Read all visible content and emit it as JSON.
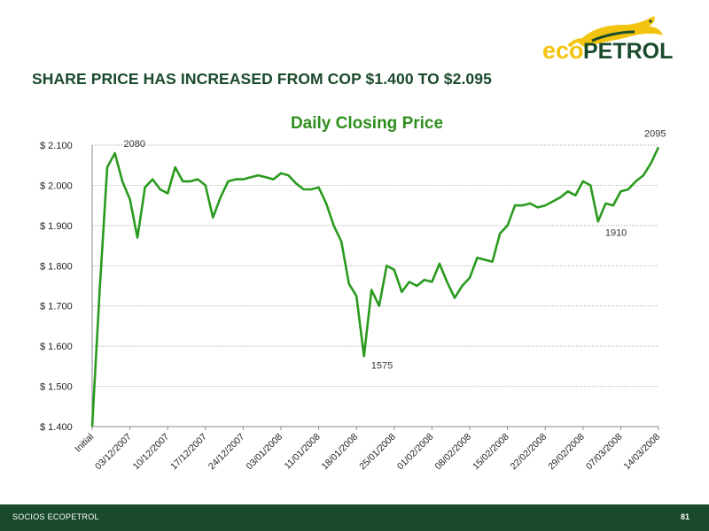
{
  "slide": {
    "headline": "SHARE PRICE HAS INCREASED FROM COP $1.400 TO $2.095",
    "footer_label": "SOCIOS ECOPETROL",
    "page_number": "81",
    "logo": {
      "eco": "eco",
      "petrol": "PETROL",
      "icon": "iguana-logo-icon"
    }
  },
  "colors": {
    "brand_dark": "#1a4a2c",
    "line": "#2a9a1e",
    "title": "#2f8f1e",
    "logo_yellow": "#f2c40f"
  },
  "chart_data": {
    "type": "line",
    "title": "Daily Closing Price",
    "xlabel": "",
    "ylabel": "",
    "ylim": [
      1400,
      2100
    ],
    "yticks": [
      1400,
      1500,
      1600,
      1700,
      1800,
      1900,
      2000,
      2100
    ],
    "ytick_labels": [
      "$ 1.400",
      "$ 1.500",
      "$ 1.600",
      "$ 1.700",
      "$ 1.800",
      "$ 1.900",
      "$ 2.000",
      "$ 2.100"
    ],
    "grid": true,
    "x_tick_labels": [
      "Initial",
      "03/12/2007",
      "10/12/2007",
      "17/12/2007",
      "24/12/2007",
      "03/01/2008",
      "11/01/2008",
      "18/01/2008",
      "25/01/2008",
      "01/02/2008",
      "08/02/2008",
      "15/02/2008",
      "22/02/2008",
      "29/02/2008",
      "07/03/2008",
      "14/03/2008"
    ],
    "series": [
      {
        "values": [
          1400,
          1740,
          2045,
          2080,
          2010,
          1965,
          1870,
          1995,
          2015,
          1990,
          1980,
          2045,
          2010,
          2010,
          2015,
          2000,
          1920,
          1970,
          2010,
          2015,
          2015,
          2020,
          2025,
          2020,
          2015,
          2030,
          2025,
          2005,
          1990,
          1990,
          1995,
          1955,
          1900,
          1860,
          1755,
          1725,
          1575,
          1740,
          1700,
          1800,
          1790,
          1735,
          1760,
          1750,
          1765,
          1760,
          1805,
          1760,
          1720,
          1750,
          1770,
          1820,
          1815,
          1810,
          1880,
          1900,
          1950,
          1950,
          1955,
          1945,
          1950,
          1960,
          1970,
          1985,
          1975,
          2010,
          2000,
          1910,
          1955,
          1950,
          1985,
          1990,
          2010,
          2025,
          2055,
          2095
        ]
      }
    ],
    "annotations": [
      {
        "text": "2080",
        "index": 3
      },
      {
        "text": "1575",
        "index": 36
      },
      {
        "text": "1910",
        "index": 67
      },
      {
        "text": "2095",
        "index": 75
      }
    ]
  }
}
